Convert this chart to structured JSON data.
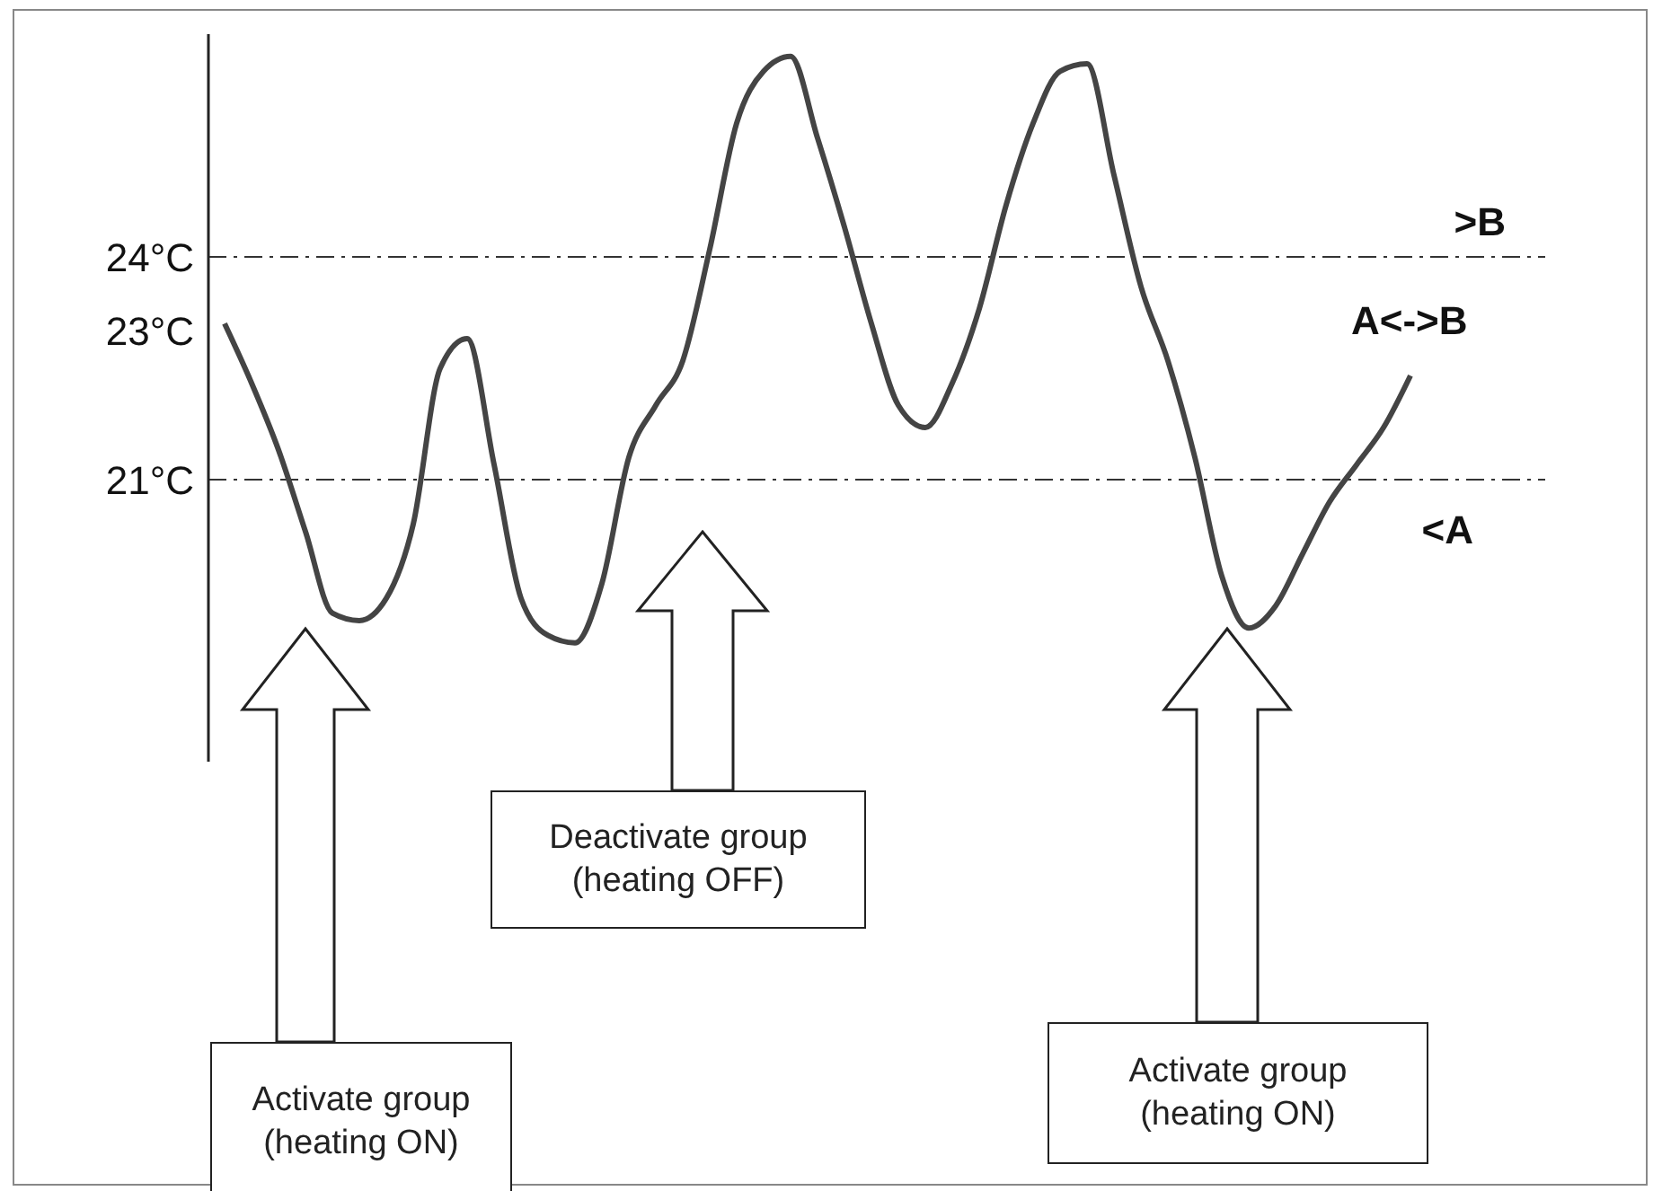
{
  "chart_data": {
    "type": "line",
    "categories": [
      null,
      null,
      null,
      null,
      null,
      null,
      null,
      null,
      null,
      null,
      null,
      null,
      null,
      null,
      null,
      null,
      null,
      null,
      null,
      null,
      null,
      null,
      null,
      null,
      null,
      null,
      null,
      null,
      null,
      null,
      null,
      null,
      null,
      null,
      null,
      null,
      null,
      null,
      null,
      null,
      null,
      null,
      null,
      null,
      null
    ],
    "series": [
      {
        "color": "#444444",
        "values": [
          23.1,
          22.3,
          21.4,
          20.3,
          19.2,
          19.1,
          19.4,
          20.4,
          22.5,
          22.9,
          21.2,
          19.4,
          18.9,
          18.8,
          19.6,
          21.3,
          22.0,
          22.6,
          24.1,
          25.8,
          26.5,
          26.7,
          25.6,
          24.4,
          23.1,
          22.0,
          21.7,
          22.3,
          23.3,
          24.7,
          25.8,
          26.5,
          26.6,
          25.1,
          23.6,
          22.6,
          21.3,
          19.7,
          19.0,
          19.3,
          20.0,
          20.7,
          21.2,
          21.7,
          22.4
        ]
      }
    ],
    "ylim": [
      17.2,
      27
    ],
    "yticks": [
      {
        "value": 21,
        "label": "21°C"
      },
      {
        "value": 23,
        "label": "23°C"
      },
      {
        "value": 24,
        "label": "24°C"
      }
    ],
    "tick_labels": "y",
    "marker": "none",
    "line_style": "solid",
    "ref_lines": [
      {
        "axis": "y",
        "value": 24,
        "label": ">B",
        "color": "#333333",
        "line_style": "dashdot"
      },
      {
        "axis": "y",
        "value": 21,
        "label": "<A",
        "color": "#333333",
        "line_style": "dashdot"
      }
    ],
    "annotations": [
      "A<->B",
      "Activate group (heating ON)",
      "Deactivate group (heating OFF)",
      "Activate group (heating ON)"
    ]
  }
}
